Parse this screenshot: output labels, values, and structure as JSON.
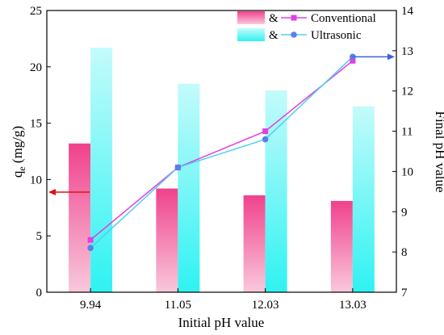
{
  "chart_data": {
    "type": "bar",
    "categories": [
      "9.94",
      "11.05",
      "12.03",
      "13.03"
    ],
    "xlabel": "Initial pH value",
    "ylabel": "q",
    "ylabel_sub": "e",
    "ylabel_unit": " (mg/g)",
    "ylabel_right": "Final pH value",
    "ylim": [
      0,
      25
    ],
    "ylim_right": [
      7,
      14
    ],
    "yticks": [
      0,
      5,
      10,
      15,
      20,
      25
    ],
    "yticks_right": [
      7,
      8,
      9,
      10,
      11,
      12,
      13,
      14
    ],
    "legend_position": "top-right",
    "bar_series": [
      {
        "legend_symbol": "&",
        "color": "#f0428c",
        "color_light": "#f9c8dc",
        "values": [
          13.2,
          9.2,
          8.6,
          8.1
        ]
      },
      {
        "legend_symbol": "&",
        "color": "#2ff2f2",
        "color_light": "#c4fbfb",
        "values": [
          21.7,
          18.5,
          17.9,
          16.5
        ]
      }
    ],
    "line_series": [
      {
        "name": "Conventional",
        "color": "#e040e0",
        "marker": "square",
        "values": [
          8.3,
          10.1,
          11.0,
          12.75
        ]
      },
      {
        "name": "Ultrasonic",
        "color": "#5b7fe8",
        "line_color": "#4fd0f0",
        "marker": "circle",
        "values": [
          8.1,
          10.1,
          10.8,
          12.85
        ]
      }
    ],
    "arrow_left_color": "#e01010",
    "arrow_right_color": "#4060e0"
  }
}
